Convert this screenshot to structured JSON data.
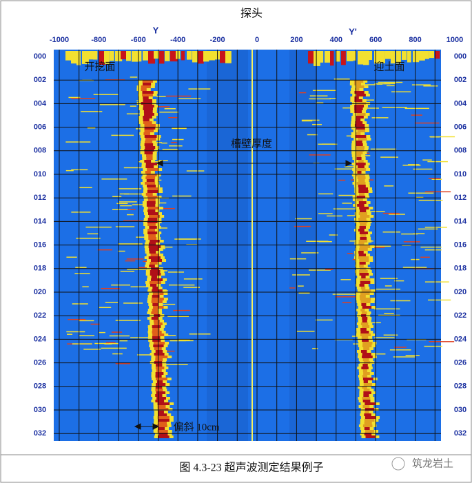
{
  "title": "探头",
  "axis_labels": {
    "left": "Y",
    "right": "Y'"
  },
  "x_ticks": [
    "-1000",
    "-800",
    "-600",
    "-400",
    "-200",
    "0",
    "200",
    "400",
    "600",
    "800",
    "1000"
  ],
  "depth_ticks": [
    "000",
    "002",
    "004",
    "006",
    "008",
    "010",
    "012",
    "014",
    "016",
    "018",
    "020",
    "022",
    "024",
    "026",
    "028",
    "030",
    "032"
  ],
  "annotations": {
    "excavation_face": "开挖面",
    "soil_face": "迎土面",
    "wall_thickness": "槽壁厚度",
    "deviation": "偏斜 10cm"
  },
  "caption": "图 4.3-23  超声波测定结果例子",
  "watermark": "筑龙岩土"
}
